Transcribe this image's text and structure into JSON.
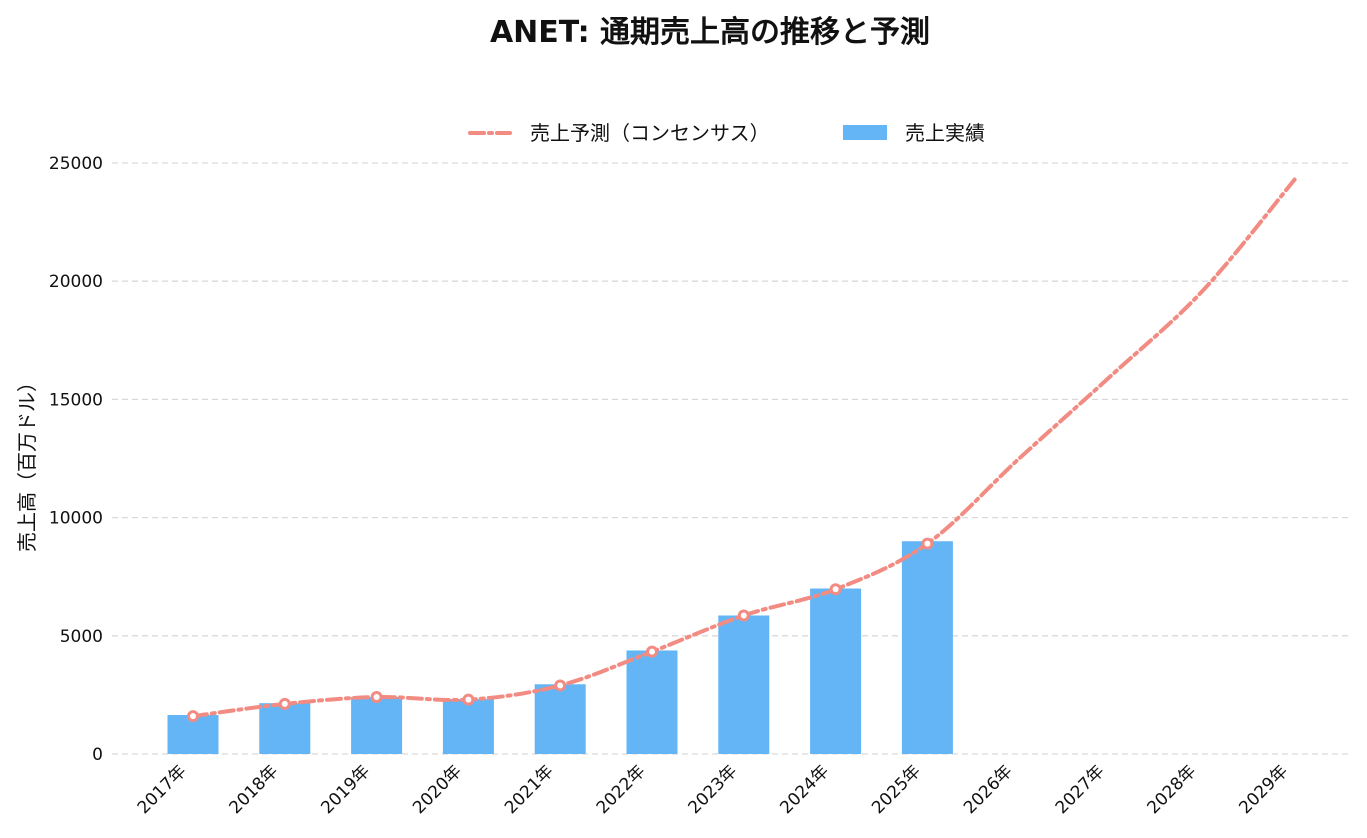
{
  "title": "ANET: 通期売上高の推移と予測",
  "colors": {
    "actual_bar": "#64b5f6",
    "forecast_line": "#f28b82",
    "grid": "#d9d9d9"
  },
  "chart_data": {
    "type": "bar",
    "title": "ANET: 通期売上高の推移と予測",
    "xlabel": "",
    "ylabel": "売上高（百万ドル）",
    "ylim": [
      0,
      25000
    ],
    "yticks": [
      0,
      5000,
      10000,
      15000,
      20000,
      25000
    ],
    "grid": "horizontal dashed",
    "legend_position": "top-center",
    "categories": [
      "2017年",
      "2018年",
      "2019年",
      "2020年",
      "2021年",
      "2022年",
      "2023年",
      "2024年",
      "2025年",
      "2026年",
      "2027年",
      "2028年",
      "2029年"
    ],
    "series": [
      {
        "name": "売上実績",
        "type": "bar",
        "color": "#64b5f6",
        "values": [
          1650,
          2150,
          2410,
          2320,
          2950,
          4380,
          5860,
          7000,
          9000,
          null,
          null,
          null,
          null
        ]
      },
      {
        "name": "売上予測（コンセンサス）",
        "type": "line",
        "color": "#f28b82",
        "style": "dash-dot",
        "values": [
          1600,
          2120,
          2410,
          2300,
          2900,
          4330,
          5860,
          6970,
          8900,
          12500,
          16000,
          19600,
          24300
        ]
      }
    ]
  }
}
